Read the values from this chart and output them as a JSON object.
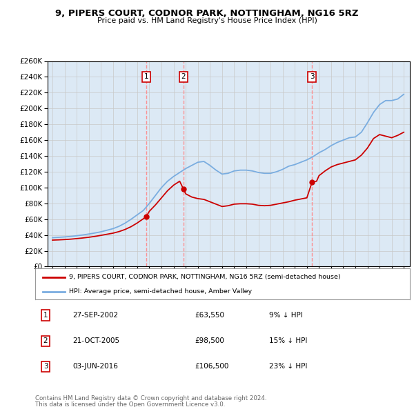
{
  "title1": "9, PIPERS COURT, CODNOR PARK, NOTTINGHAM, NG16 5RZ",
  "title2": "Price paid vs. HM Land Registry's House Price Index (HPI)",
  "legend_line1": "9, PIPERS COURT, CODNOR PARK, NOTTINGHAM, NG16 5RZ (semi-detached house)",
  "legend_line2": "HPI: Average price, semi-detached house, Amber Valley",
  "footer1": "Contains HM Land Registry data © Crown copyright and database right 2024.",
  "footer2": "This data is licensed under the Open Government Licence v3.0.",
  "transactions": [
    {
      "num": 1,
      "date": "27-SEP-2002",
      "price": "£63,550",
      "pct": "9% ↓ HPI",
      "year": 2002.75
    },
    {
      "num": 2,
      "date": "21-OCT-2005",
      "price": "£98,500",
      "pct": "15% ↓ HPI",
      "year": 2005.8
    },
    {
      "num": 3,
      "date": "03-JUN-2016",
      "price": "£106,500",
      "pct": "23% ↓ HPI",
      "year": 2016.42
    }
  ],
  "hpi_color": "#7aade0",
  "price_color": "#cc0000",
  "vline_color": "#ff8888",
  "background_color": "#dce9f5",
  "plot_bg": "#ffffff",
  "grid_color": "#c8c8c8",
  "ylim_max": 260000,
  "ytick_step": 20000,
  "years_hpi": [
    1995,
    1995.5,
    1996,
    1996.5,
    1997,
    1997.5,
    1998,
    1998.5,
    1999,
    1999.5,
    2000,
    2000.5,
    2001,
    2001.5,
    2002,
    2002.5,
    2003,
    2003.5,
    2004,
    2004.5,
    2005,
    2005.5,
    2006,
    2006.5,
    2007,
    2007.5,
    2008,
    2008.5,
    2009,
    2009.5,
    2010,
    2010.5,
    2011,
    2011.5,
    2012,
    2012.5,
    2013,
    2013.5,
    2014,
    2014.5,
    2015,
    2015.5,
    2016,
    2016.5,
    2017,
    2017.5,
    2018,
    2018.5,
    2019,
    2019.5,
    2020,
    2020.5,
    2021,
    2021.5,
    2022,
    2022.5,
    2023,
    2023.5,
    2024
  ],
  "hpi_values": [
    36500,
    37000,
    37500,
    38200,
    39000,
    40000,
    41200,
    42500,
    44000,
    46000,
    48000,
    51000,
    55000,
    60000,
    65500,
    71000,
    80000,
    90000,
    100000,
    108000,
    114000,
    119000,
    124000,
    128000,
    132000,
    133000,
    128000,
    122000,
    117000,
    118000,
    121000,
    122000,
    122000,
    121000,
    119000,
    118000,
    118000,
    120000,
    123000,
    127000,
    129000,
    132000,
    135000,
    139000,
    144000,
    148000,
    153000,
    157000,
    160000,
    163000,
    164000,
    170000,
    182000,
    195000,
    205000,
    210000,
    210000,
    212000,
    218000
  ],
  "years_price": [
    1995,
    1995.5,
    1996,
    1996.5,
    1997,
    1997.5,
    1998,
    1998.5,
    1999,
    1999.5,
    2000,
    2000.5,
    2001,
    2001.5,
    2002,
    2002.5,
    2002.75,
    2003,
    2003.5,
    2004,
    2004.5,
    2005,
    2005.5,
    2005.8,
    2006,
    2006.5,
    2007,
    2007.5,
    2008,
    2008.5,
    2009,
    2009.5,
    2010,
    2010.5,
    2011,
    2011.5,
    2012,
    2012.5,
    2013,
    2013.5,
    2014,
    2014.5,
    2015,
    2015.5,
    2016,
    2016.42,
    2016.8,
    2017,
    2017.5,
    2018,
    2018.5,
    2019,
    2019.5,
    2020,
    2020.5,
    2021,
    2021.5,
    2022,
    2022.5,
    2023,
    2023.5,
    2024
  ],
  "price_values": [
    33500,
    33800,
    34200,
    34700,
    35400,
    36200,
    37100,
    38200,
    39500,
    40900,
    42300,
    44300,
    47000,
    50600,
    55200,
    60500,
    63550,
    70000,
    78000,
    87000,
    96000,
    103000,
    108000,
    98500,
    92000,
    88000,
    86000,
    85000,
    82000,
    79000,
    76000,
    77000,
    79000,
    79500,
    79500,
    79000,
    77500,
    77000,
    77500,
    79000,
    80500,
    82000,
    84000,
    85500,
    87000,
    106500,
    108000,
    115000,
    121000,
    126000,
    129000,
    131000,
    133000,
    135000,
    141000,
    150000,
    162000,
    167000,
    165000,
    163000,
    166000,
    170000
  ],
  "sale_prices": [
    63550,
    98500,
    106500
  ]
}
